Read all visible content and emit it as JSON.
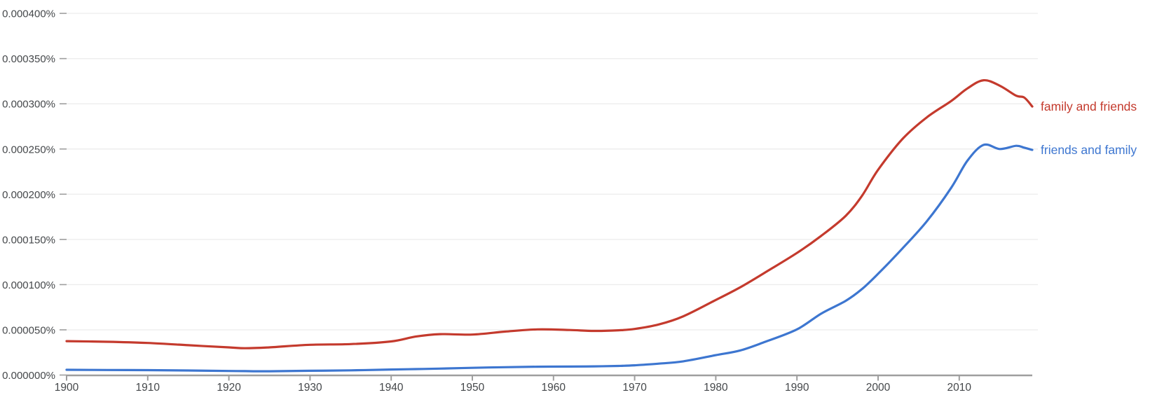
{
  "chart_data": {
    "type": "line",
    "title": "",
    "xlabel": "",
    "ylabel": "",
    "y_unit": "%",
    "grid": true,
    "legend_position": "line-end-right",
    "xlim": [
      1900,
      2019
    ],
    "ylim": [
      0,
      0.00041
    ],
    "x_ticks": [
      1900,
      1910,
      1920,
      1930,
      1940,
      1950,
      1960,
      1970,
      1980,
      1990,
      2000,
      2010
    ],
    "y_ticks": [
      {
        "value": 0.0,
        "label": "0.000000%"
      },
      {
        "value": 5e-05,
        "label": "0.000050%"
      },
      {
        "value": 0.0001,
        "label": "0.000100%"
      },
      {
        "value": 0.00015,
        "label": "0.000150%"
      },
      {
        "value": 0.0002,
        "label": "0.000200%"
      },
      {
        "value": 0.00025,
        "label": "0.000250%"
      },
      {
        "value": 0.0003,
        "label": "0.000300%"
      },
      {
        "value": 0.00035,
        "label": "0.000350%"
      },
      {
        "value": 0.0004,
        "label": "0.000400%"
      }
    ],
    "x": [
      1900,
      1905,
      1910,
      1915,
      1920,
      1922,
      1925,
      1930,
      1935,
      1940,
      1943,
      1946,
      1950,
      1954,
      1958,
      1962,
      1965,
      1968,
      1970,
      1973,
      1976,
      1980,
      1983,
      1986,
      1990,
      1993,
      1996,
      1998,
      2000,
      2003,
      2006,
      2009,
      2011,
      2013,
      2015,
      2017,
      2018,
      2019
    ],
    "series": [
      {
        "name": "family and friends",
        "color": "#c43a2d",
        "values": [
          3.75e-05,
          3.68e-05,
          3.55e-05,
          3.3e-05,
          3.06e-05,
          2.97e-05,
          3.06e-05,
          3.35e-05,
          3.42e-05,
          3.72e-05,
          4.25e-05,
          4.52e-05,
          4.48e-05,
          4.8e-05,
          5.05e-05,
          4.98e-05,
          4.88e-05,
          4.95e-05,
          5.1e-05,
          5.6e-05,
          6.5e-05,
          8.3e-05,
          9.7e-05,
          0.000113,
          0.000135,
          0.000154,
          0.000176,
          0.000198,
          0.000227,
          0.000261,
          0.000285,
          0.000303,
          0.000317,
          0.000326,
          0.00032,
          0.000309,
          0.000307,
          0.000297
        ]
      },
      {
        "name": "friends and family",
        "color": "#3d76d0",
        "values": [
          5.8e-06,
          5.6e-06,
          5.4e-06,
          5e-06,
          4.5e-06,
          4.3e-06,
          4.2e-06,
          4.7e-06,
          5.2e-06,
          6.1e-06,
          6.6e-06,
          7.1e-06,
          8e-06,
          8.7e-06,
          9.2e-06,
          9.4e-06,
          9.6e-06,
          1.01e-05,
          1.08e-05,
          1.26e-05,
          1.52e-05,
          2.2e-05,
          2.72e-05,
          3.65e-05,
          5.05e-05,
          6.8e-05,
          8.2e-05,
          9.5e-05,
          0.000112,
          0.00014,
          0.00017,
          0.000207,
          0.000237,
          0.0002545,
          0.00025,
          0.0002535,
          0.0002515,
          0.000249
        ]
      }
    ],
    "styles": {
      "background": "#ffffff",
      "grid_color": "#ededed",
      "axis_color": "#9e9e9e",
      "tick_label_color": "#45484b"
    }
  }
}
